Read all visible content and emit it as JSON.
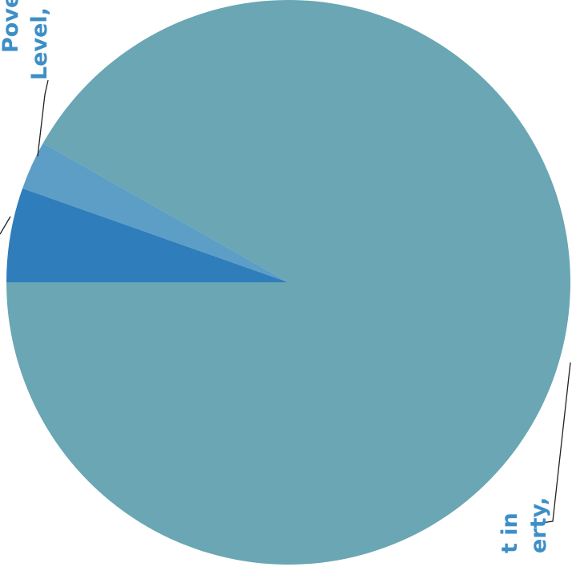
{
  "chart_data": {
    "type": "pie",
    "values": [
      5.4,
      2.8,
      91.8
    ],
    "colors": [
      "#2f7dbb",
      "#5c9ec6",
      "#6aa6b3"
    ],
    "start_angle": 180,
    "annotations": [
      "Pove",
      "Level,",
      "t in",
      "erty,"
    ]
  }
}
